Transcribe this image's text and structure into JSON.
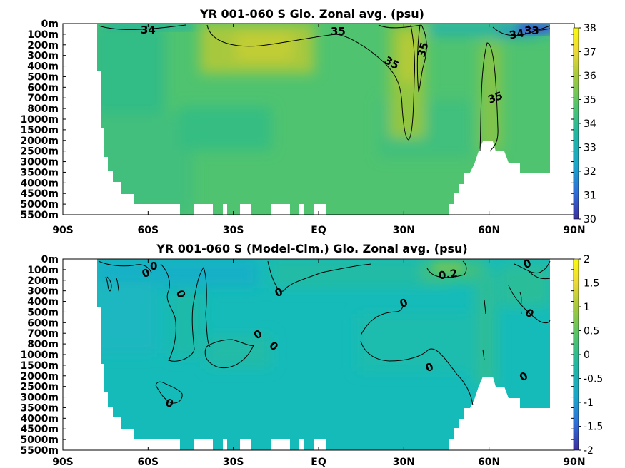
{
  "chart_data": [
    {
      "type": "heatmap",
      "title": "YR 001-060 S Glo. Zonal avg. (psu)",
      "xlabel": "",
      "ylabel": "",
      "x_ticks": [
        "90S",
        "60S",
        "30S",
        "EQ",
        "30N",
        "60N",
        "90N"
      ],
      "y_ticks": [
        "0m",
        "100m",
        "200m",
        "300m",
        "400m",
        "500m",
        "600m",
        "700m",
        "800m",
        "1000m",
        "1500m",
        "2000m",
        "2500m",
        "3000m",
        "3500m",
        "4000m",
        "4500m",
        "5000m",
        "5500m"
      ],
      "colorbar": {
        "ticks": [
          "30",
          "31",
          "32",
          "33",
          "34",
          "35",
          "36",
          "37",
          "38"
        ],
        "range": [
          30,
          38
        ]
      },
      "contour_labels": [
        "34",
        "35",
        "35",
        "35",
        "35",
        "34",
        "33"
      ],
      "colormap": [
        "#3d2f9c",
        "#2f6ed8",
        "#1aa6c9",
        "#22b7a0",
        "#55c46a",
        "#a6c93a",
        "#eed93a",
        "#f9fb0e"
      ]
    },
    {
      "type": "heatmap",
      "title": "YR 001-060 S (Model-Clm.) Glo. Zonal avg. (psu)",
      "xlabel": "",
      "ylabel": "",
      "x_ticks": [
        "90S",
        "60S",
        "30S",
        "EQ",
        "30N",
        "60N",
        "90N"
      ],
      "y_ticks": [
        "0m",
        "100m",
        "200m",
        "300m",
        "400m",
        "500m",
        "600m",
        "700m",
        "800m",
        "1000m",
        "1500m",
        "2000m",
        "2500m",
        "3000m",
        "3500m",
        "4000m",
        "4500m",
        "5000m",
        "5500m"
      ],
      "colorbar": {
        "ticks": [
          "-2",
          "-1.5",
          "-1",
          "-0.5",
          "0",
          "0.5",
          "1",
          "1.5",
          "2"
        ],
        "range": [
          -2,
          2
        ]
      },
      "contour_labels": [
        "0",
        "0",
        "0",
        "0",
        "0",
        "0",
        "0",
        "0",
        "0.2",
        "0",
        "0",
        "0",
        "0",
        "0"
      ],
      "colormap": [
        "#3d2f9c",
        "#2f6ed8",
        "#1aa6c9",
        "#22b7a0",
        "#55c46a",
        "#a6c93a",
        "#eed93a",
        "#f9fb0e"
      ]
    }
  ]
}
